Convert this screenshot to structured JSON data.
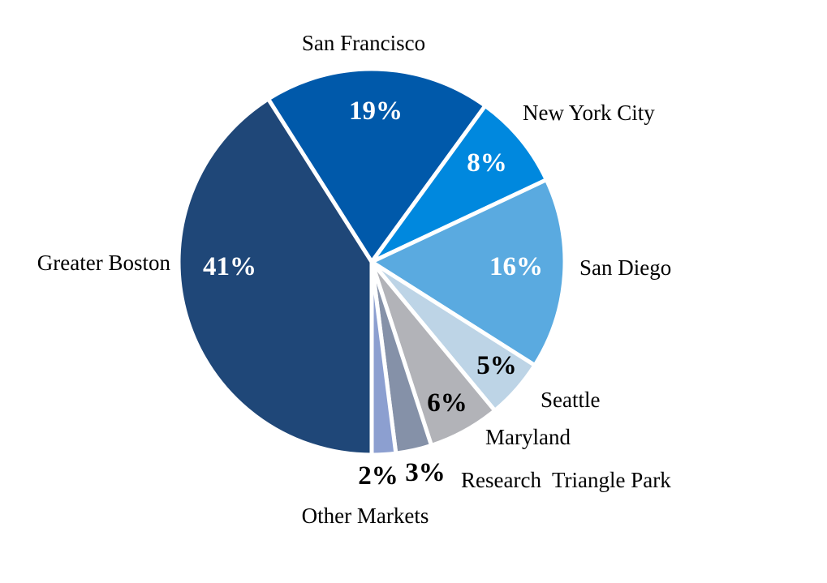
{
  "chart_data": {
    "type": "pie",
    "direction": "clockwise",
    "slices": [
      {
        "label": "San Francisco",
        "value": 19,
        "display": "19%",
        "color": "#0059AA",
        "text_color": "#FFFFFF"
      },
      {
        "label": "New York City",
        "value": 8,
        "display": "8%",
        "color": "#0088DE",
        "text_color": "#FFFFFF"
      },
      {
        "label": "San Diego",
        "value": 16,
        "display": "16%",
        "color": "#5AAAE0",
        "text_color": "#FFFFFF"
      },
      {
        "label": "Seattle",
        "value": 5,
        "display": "5%",
        "color": "#BDD4E6",
        "text_color": "#000000"
      },
      {
        "label": "Maryland",
        "value": 6,
        "display": "6%",
        "color": "#B2B3B8",
        "text_color": "#000000"
      },
      {
        "label": "Research  Triangle Park",
        "value": 3,
        "display": "3%",
        "color": "#8591A8",
        "text_color": "#000000"
      },
      {
        "label": "Other Markets",
        "value": 2,
        "display": "2%",
        "color": "#8C9FD0",
        "text_color": "#000000"
      },
      {
        "label": "Greater Boston",
        "value": 41,
        "display": "41%",
        "color": "#1F4778",
        "text_color": "#FFFFFF"
      }
    ]
  }
}
